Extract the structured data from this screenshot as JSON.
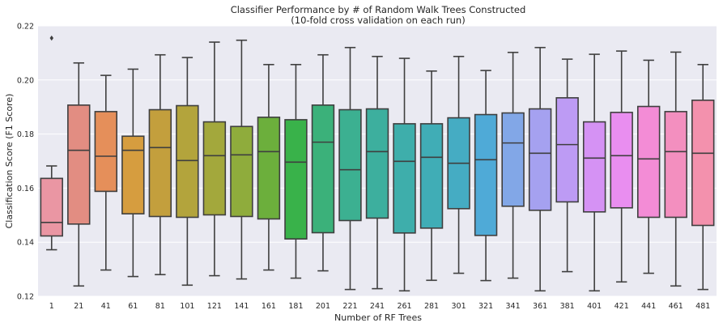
{
  "chart_data": {
    "type": "box",
    "title": "Classifier Performance by # of Random Walk Trees Constructed",
    "subtitle": "(10-fold cross validation on each run)",
    "xlabel": "Number of RF Trees",
    "ylabel": "Classification Score (F1 Score)",
    "ylim": [
      0.12,
      0.22
    ],
    "yticks": [
      "0.12",
      "0.14",
      "0.16",
      "0.18",
      "0.20",
      "0.22"
    ],
    "grid": true,
    "categories": [
      "1",
      "21",
      "41",
      "61",
      "81",
      "101",
      "121",
      "141",
      "161",
      "181",
      "201",
      "221",
      "241",
      "261",
      "281",
      "301",
      "321",
      "341",
      "361",
      "381",
      "401",
      "421",
      "441",
      "461",
      "481"
    ],
    "colors": [
      "#ea96a3",
      "#e28d82",
      "#e58f5a",
      "#d69d3f",
      "#c39f3d",
      "#b3a43c",
      "#a3a83c",
      "#8fac3c",
      "#6caf3c",
      "#39b24a",
      "#3bb17a",
      "#3cb091",
      "#3daf9e",
      "#3eaeab",
      "#40adb6",
      "#45acc3",
      "#4faad7",
      "#82a7e7",
      "#a5a1f0",
      "#bd9bf4",
      "#d592f4",
      "#e98ef0",
      "#f38cd6",
      "#f38fbf",
      "#f391ad"
    ],
    "series": [
      {
        "category": "1",
        "whislo": 0.1372,
        "q1": 0.1423,
        "median": 0.1473,
        "q3": 0.1636,
        "whishi": 0.1682,
        "fliers": [
          0.2155
        ]
      },
      {
        "category": "21",
        "whislo": 0.1238,
        "q1": 0.1467,
        "median": 0.174,
        "q3": 0.1907,
        "whishi": 0.2063,
        "fliers": []
      },
      {
        "category": "41",
        "whislo": 0.1297,
        "q1": 0.1588,
        "median": 0.1718,
        "q3": 0.1883,
        "whishi": 0.2017,
        "fliers": []
      },
      {
        "category": "61",
        "whislo": 0.1273,
        "q1": 0.1505,
        "median": 0.174,
        "q3": 0.1792,
        "whishi": 0.204,
        "fliers": []
      },
      {
        "category": "81",
        "whislo": 0.128,
        "q1": 0.1495,
        "median": 0.175,
        "q3": 0.189,
        "whishi": 0.2093,
        "fliers": []
      },
      {
        "category": "101",
        "whislo": 0.1241,
        "q1": 0.1492,
        "median": 0.1702,
        "q3": 0.1905,
        "whishi": 0.2083,
        "fliers": []
      },
      {
        "category": "121",
        "whislo": 0.1276,
        "q1": 0.1501,
        "median": 0.172,
        "q3": 0.1845,
        "whishi": 0.214,
        "fliers": []
      },
      {
        "category": "141",
        "whislo": 0.1264,
        "q1": 0.1495,
        "median": 0.1723,
        "q3": 0.1828,
        "whishi": 0.2147,
        "fliers": []
      },
      {
        "category": "161",
        "whislo": 0.1297,
        "q1": 0.1486,
        "median": 0.1735,
        "q3": 0.1862,
        "whishi": 0.2057,
        "fliers": []
      },
      {
        "category": "181",
        "whislo": 0.1267,
        "q1": 0.1412,
        "median": 0.1696,
        "q3": 0.1853,
        "whishi": 0.2057,
        "fliers": []
      },
      {
        "category": "201",
        "whislo": 0.1294,
        "q1": 0.1435,
        "median": 0.177,
        "q3": 0.1907,
        "whishi": 0.2093,
        "fliers": []
      },
      {
        "category": "221",
        "whislo": 0.1225,
        "q1": 0.148,
        "median": 0.1668,
        "q3": 0.189,
        "whishi": 0.212,
        "fliers": []
      },
      {
        "category": "241",
        "whislo": 0.1228,
        "q1": 0.1489,
        "median": 0.1735,
        "q3": 0.1893,
        "whishi": 0.2087,
        "fliers": []
      },
      {
        "category": "261",
        "whislo": 0.122,
        "q1": 0.1434,
        "median": 0.1699,
        "q3": 0.1838,
        "whishi": 0.208,
        "fliers": []
      },
      {
        "category": "281",
        "whislo": 0.1259,
        "q1": 0.1452,
        "median": 0.1714,
        "q3": 0.1838,
        "whishi": 0.2033,
        "fliers": []
      },
      {
        "category": "301",
        "whislo": 0.1285,
        "q1": 0.1524,
        "median": 0.1692,
        "q3": 0.186,
        "whishi": 0.2087,
        "fliers": []
      },
      {
        "category": "321",
        "whislo": 0.1258,
        "q1": 0.1425,
        "median": 0.1705,
        "q3": 0.1872,
        "whishi": 0.2035,
        "fliers": []
      },
      {
        "category": "341",
        "whislo": 0.1267,
        "q1": 0.1533,
        "median": 0.1767,
        "q3": 0.1878,
        "whishi": 0.2102,
        "fliers": []
      },
      {
        "category": "361",
        "whislo": 0.122,
        "q1": 0.1518,
        "median": 0.1729,
        "q3": 0.1893,
        "whishi": 0.212,
        "fliers": []
      },
      {
        "category": "381",
        "whislo": 0.1291,
        "q1": 0.1549,
        "median": 0.1761,
        "q3": 0.1934,
        "whishi": 0.2077,
        "fliers": []
      },
      {
        "category": "401",
        "whislo": 0.122,
        "q1": 0.1512,
        "median": 0.1711,
        "q3": 0.1845,
        "whishi": 0.2095,
        "fliers": []
      },
      {
        "category": "421",
        "whislo": 0.1253,
        "q1": 0.1527,
        "median": 0.172,
        "q3": 0.188,
        "whishi": 0.2107,
        "fliers": []
      },
      {
        "category": "441",
        "whislo": 0.1285,
        "q1": 0.1492,
        "median": 0.1708,
        "q3": 0.1902,
        "whishi": 0.2073,
        "fliers": []
      },
      {
        "category": "461",
        "whislo": 0.1238,
        "q1": 0.1492,
        "median": 0.1735,
        "q3": 0.1883,
        "whishi": 0.2103,
        "fliers": []
      },
      {
        "category": "481",
        "whislo": 0.1225,
        "q1": 0.1462,
        "median": 0.1729,
        "q3": 0.1925,
        "whishi": 0.2057,
        "fliers": []
      }
    ]
  }
}
